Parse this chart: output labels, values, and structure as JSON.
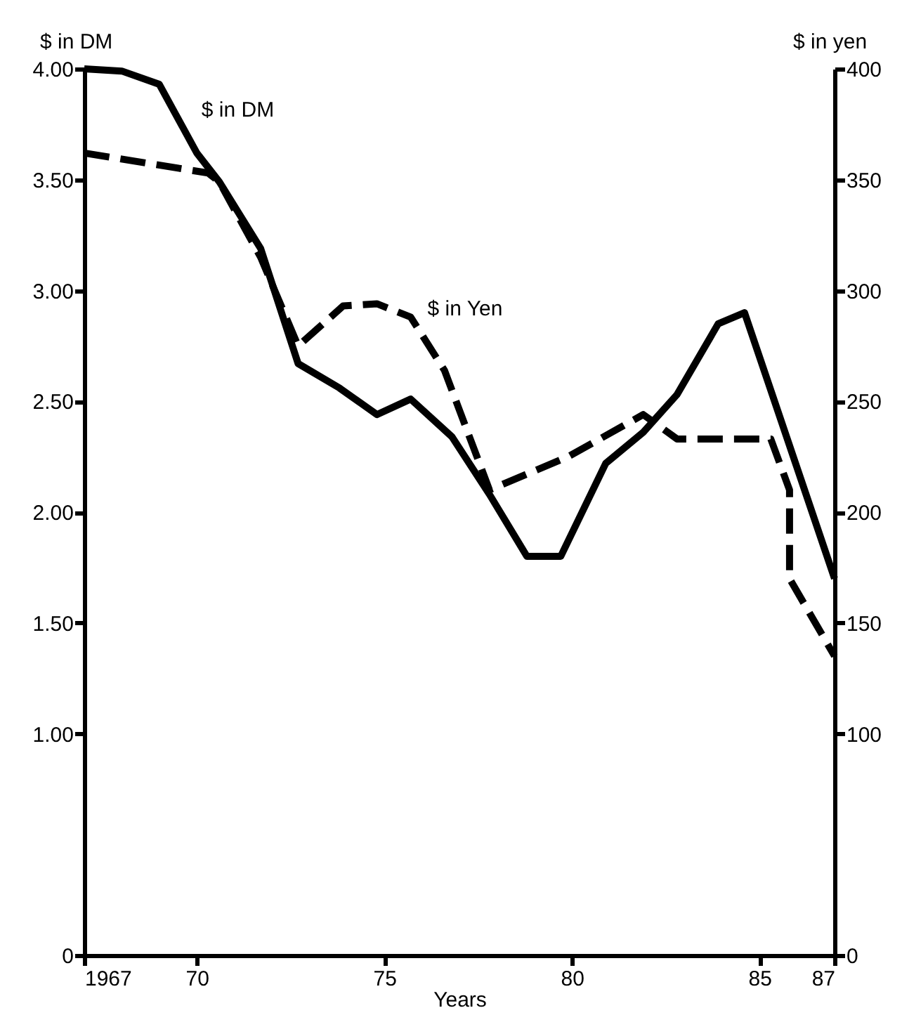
{
  "chart_data": {
    "type": "line",
    "xlabel": "Years",
    "ylabel": "$ in DM",
    "y2label": "$ in yen",
    "xlim": [
      1967,
      1987
    ],
    "xticks": [
      1967,
      {
        "value": 1970,
        "label": "70"
      },
      {
        "value": 1975,
        "label": "75"
      },
      {
        "value": 1980,
        "label": "80"
      },
      {
        "value": 1985,
        "label": "85"
      },
      {
        "value": 1987,
        "label": "87"
      }
    ],
    "ylim": [
      0,
      4.0
    ],
    "yticks": [
      0,
      {
        "value": 1.0,
        "label": "1.00"
      },
      {
        "value": 1.5,
        "label": "1.50"
      },
      {
        "value": 2.0,
        "label": "2.00"
      },
      {
        "value": 2.5,
        "label": "2.50"
      },
      {
        "value": 3.0,
        "label": "3.00"
      },
      {
        "value": 3.5,
        "label": "3.50"
      },
      {
        "value": 4.0,
        "label": "4.00"
      }
    ],
    "y2lim": [
      0,
      400
    ],
    "y2ticks": [
      0,
      100,
      150,
      200,
      250,
      300,
      350,
      400
    ],
    "grid": false,
    "marker": "none",
    "series": [
      {
        "name": "$ in DM",
        "color": "#000000",
        "line_style": "solid",
        "x": [
          1967,
          1968,
          1969,
          1970,
          1970.6,
          1971.7,
          1972.7,
          1973.8,
          1974.8,
          1975.7,
          1976.8,
          1977.8,
          1978.8,
          1979.7,
          1980.9,
          1981.9,
          1982.8,
          1983.9,
          1984.6,
          1987
        ],
        "values": [
          4.0,
          3.99,
          3.93,
          3.62,
          3.49,
          3.19,
          2.67,
          2.56,
          2.44,
          2.51,
          2.34,
          2.08,
          1.8,
          1.8,
          2.22,
          2.36,
          2.53,
          2.85,
          2.9,
          1.7
        ]
      },
      {
        "name": "$ in Yen",
        "color": "#000000",
        "line_style": "dashed",
        "axis": "y2",
        "x": [
          1967,
          1970.3,
          1970.6,
          1971.7,
          1972.7,
          1973.9,
          1974.8,
          1975.7,
          1976.6,
          1977.8,
          1979.9,
          1981.9,
          1982.8,
          1985.3,
          1985.8,
          1985.8,
          1987
        ],
        "values": [
          362,
          353,
          349,
          315,
          275,
          293,
          294,
          288,
          264,
          210,
          225,
          244,
          233,
          233,
          210,
          170,
          135
        ]
      }
    ]
  }
}
